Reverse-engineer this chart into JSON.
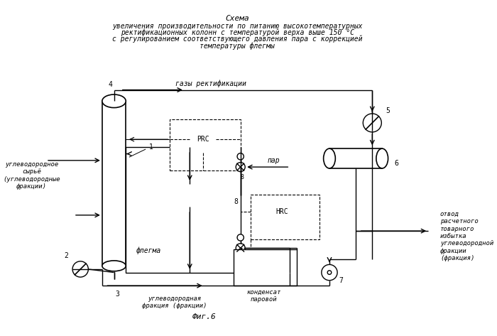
{
  "title_line1": "Схема",
  "title_line2": "увеличения производительности по питанию высокотемпературных",
  "title_line3": "ректификационных колонн с температурой верха выше 150 °C",
  "title_line4": "с регулированием соответствующего давления пара с коррекцией",
  "title_line5": "температуры флегмы",
  "fig_label": "Фиг.6",
  "bg_color": "#ffffff",
  "label_gazy": "газы ректификации",
  "label_uglevodorod": "углеводородное\nсырьё\n(углеводородные\nфракции)",
  "label_flegma": "флегма",
  "label_uglevodorod_fr": "углеводородная\nфракция (фракции)",
  "label_kondensат": "конденсат\nпаровой",
  "label_otvod": "отвод\nрасчетного\nтоварного\nизбытка\nуглеводородной\nфракции\n(фракция)",
  "label_par": "пар",
  "n1": "1",
  "n2": "2",
  "n3": "3",
  "n4": "4",
  "n5": "5",
  "n6": "6",
  "n7": "7",
  "n8": "8",
  "label_PRC": "PRC",
  "label_HRC": "HRC"
}
